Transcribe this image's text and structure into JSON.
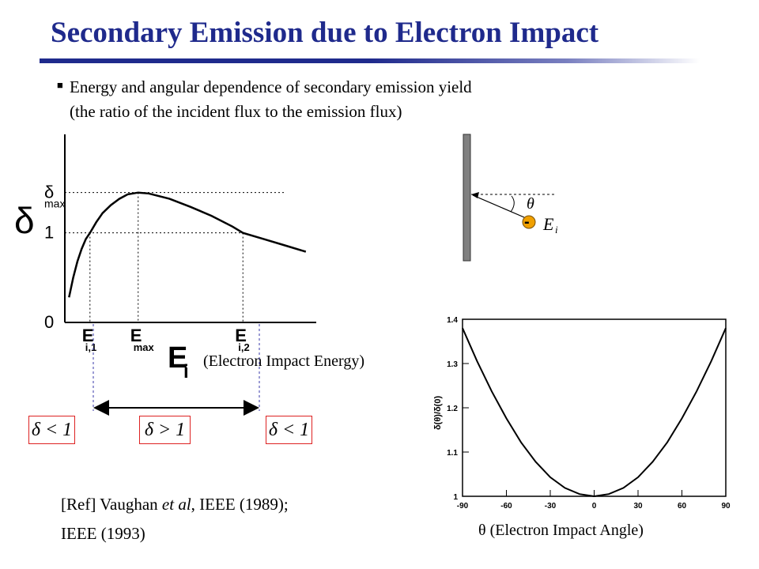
{
  "title": "Secondary Emission due to Electron Impact",
  "bullet": {
    "line1": "Energy and angular dependence of secondary emission yield",
    "line2": "(the ratio of the incident flux to the emission flux)"
  },
  "energy_caption": "(Electron Impact Energy)",
  "angle_caption": "(Electron Impact Angle)",
  "angle_symbol": "θ",
  "regions": {
    "left": "δ < 1",
    "middle": "δ > 1",
    "right": "δ < 1"
  },
  "reference": {
    "line1_prefix": "[Ref] Vaughan ",
    "line1_italic": "et al",
    "line1_suffix": ", IEEE (1989);",
    "line2": "IEEE (1993)"
  },
  "diagram": {
    "theta_label": "θ",
    "energy_label": "E",
    "energy_subscript": "i",
    "charge_label": "-"
  },
  "chart_data": [
    {
      "type": "line",
      "ylabel": "δ",
      "xlabel": "E",
      "xlabel_subscript": "i",
      "y_ticks": [
        {
          "label": "δ",
          "sub": "max",
          "value": 1.45
        },
        {
          "label": "1",
          "sub": "",
          "value": 1.0
        },
        {
          "label": "0",
          "sub": "",
          "value": 0.0
        }
      ],
      "x_ticks": [
        {
          "label": "E",
          "sub": "i,1",
          "value": 0.12
        },
        {
          "label": "E",
          "sub": "max",
          "value": 0.35
        },
        {
          "label": "E",
          "sub": "i,2",
          "value": 0.85
        }
      ],
      "xlim": [
        0,
        1.2
      ],
      "ylim": [
        0,
        2.1
      ],
      "series": [
        {
          "x": [
            0.02,
            0.04,
            0.06,
            0.08,
            0.1,
            0.12,
            0.15,
            0.18,
            0.22,
            0.26,
            0.3,
            0.35,
            0.4,
            0.5,
            0.6,
            0.7,
            0.8,
            0.85,
            0.95,
            1.05,
            1.15
          ],
          "y": [
            0.28,
            0.5,
            0.68,
            0.82,
            0.93,
            1.0,
            1.12,
            1.22,
            1.31,
            1.38,
            1.43,
            1.45,
            1.44,
            1.38,
            1.29,
            1.19,
            1.07,
            1.0,
            0.93,
            0.86,
            0.79
          ]
        }
      ]
    },
    {
      "type": "line",
      "xlabel": "",
      "ylabel": "δ(θ)/δ(0)",
      "xlim": [
        -90,
        90
      ],
      "ylim": [
        1.0,
        1.4
      ],
      "x_ticks": [
        -90,
        -60,
        -30,
        0,
        30,
        60,
        90
      ],
      "y_ticks": [
        1,
        1.1,
        1.2,
        1.3,
        1.4
      ],
      "y_tick_labels": [
        "1",
        "1.1",
        "1.2",
        "1.3",
        "1.4"
      ],
      "series": [
        {
          "x": [
            -90,
            -80,
            -70,
            -60,
            -50,
            -40,
            -30,
            -20,
            -10,
            0,
            10,
            20,
            30,
            40,
            50,
            60,
            70,
            80,
            90
          ],
          "y": [
            1.38,
            1.305,
            1.237,
            1.176,
            1.122,
            1.078,
            1.043,
            1.019,
            1.005,
            1.0,
            1.005,
            1.019,
            1.043,
            1.078,
            1.122,
            1.176,
            1.237,
            1.305,
            1.38
          ]
        }
      ]
    }
  ]
}
